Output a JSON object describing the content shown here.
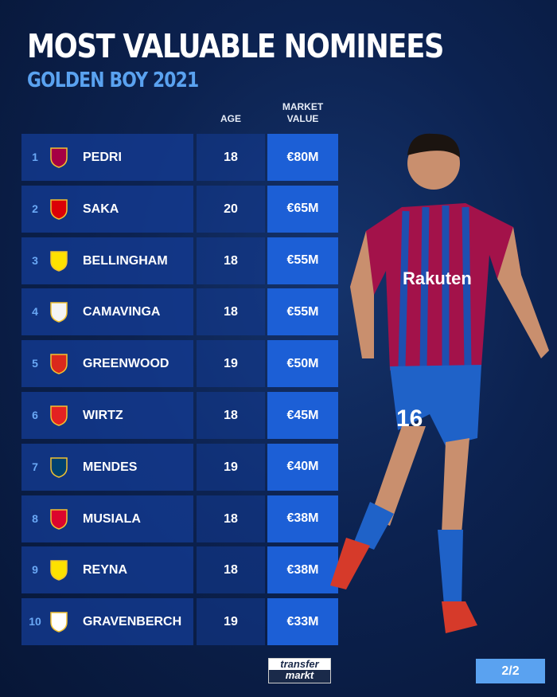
{
  "title": "MOST VALUABLE NOMINEES",
  "subtitle": "GOLDEN BOY 2021",
  "headers": {
    "age": "AGE",
    "market_value_line1": "MARKET",
    "market_value_line2": "VALUE"
  },
  "rows": [
    {
      "rank": "1",
      "club_icon": "barcelona-crest",
      "name": "PEDRI",
      "age": "18",
      "value": "€80M",
      "color": "#a50044"
    },
    {
      "rank": "2",
      "club_icon": "arsenal-crest",
      "name": "SAKA",
      "age": "20",
      "value": "€65M",
      "color": "#db0007"
    },
    {
      "rank": "3",
      "club_icon": "dortmund-crest",
      "name": "BELLINGHAM",
      "age": "18",
      "value": "€55M",
      "color": "#fde100"
    },
    {
      "rank": "4",
      "club_icon": "real-madrid-crest",
      "name": "CAMAVINGA",
      "age": "18",
      "value": "€55M",
      "color": "#f4f4f4"
    },
    {
      "rank": "5",
      "club_icon": "manchester-united-crest",
      "name": "GREENWOOD",
      "age": "19",
      "value": "€50M",
      "color": "#da291c"
    },
    {
      "rank": "6",
      "club_icon": "leverkusen-crest",
      "name": "WIRTZ",
      "age": "18",
      "value": "€45M",
      "color": "#e32221"
    },
    {
      "rank": "7",
      "club_icon": "psg-crest",
      "name": "MENDES",
      "age": "19",
      "value": "€40M",
      "color": "#004170"
    },
    {
      "rank": "8",
      "club_icon": "bayern-crest",
      "name": "MUSIALA",
      "age": "18",
      "value": "€38M",
      "color": "#dc052d"
    },
    {
      "rank": "9",
      "club_icon": "dortmund-crest",
      "name": "REYNA",
      "age": "18",
      "value": "€38M",
      "color": "#fde100"
    },
    {
      "rank": "10",
      "club_icon": "ajax-crest",
      "name": "GRAVENBERCH",
      "age": "19",
      "value": "€33M",
      "color": "#ffffff"
    }
  ],
  "logo": {
    "line1": "transfer",
    "line2": "markt"
  },
  "page_indicator": "2/2",
  "player": {
    "shirt_sponsor": "Rakuten",
    "shirt_number": "16"
  },
  "colors": {
    "background": "#0c2250",
    "accent": "#5aa2f0",
    "value_cell": "#1c5fd6"
  }
}
